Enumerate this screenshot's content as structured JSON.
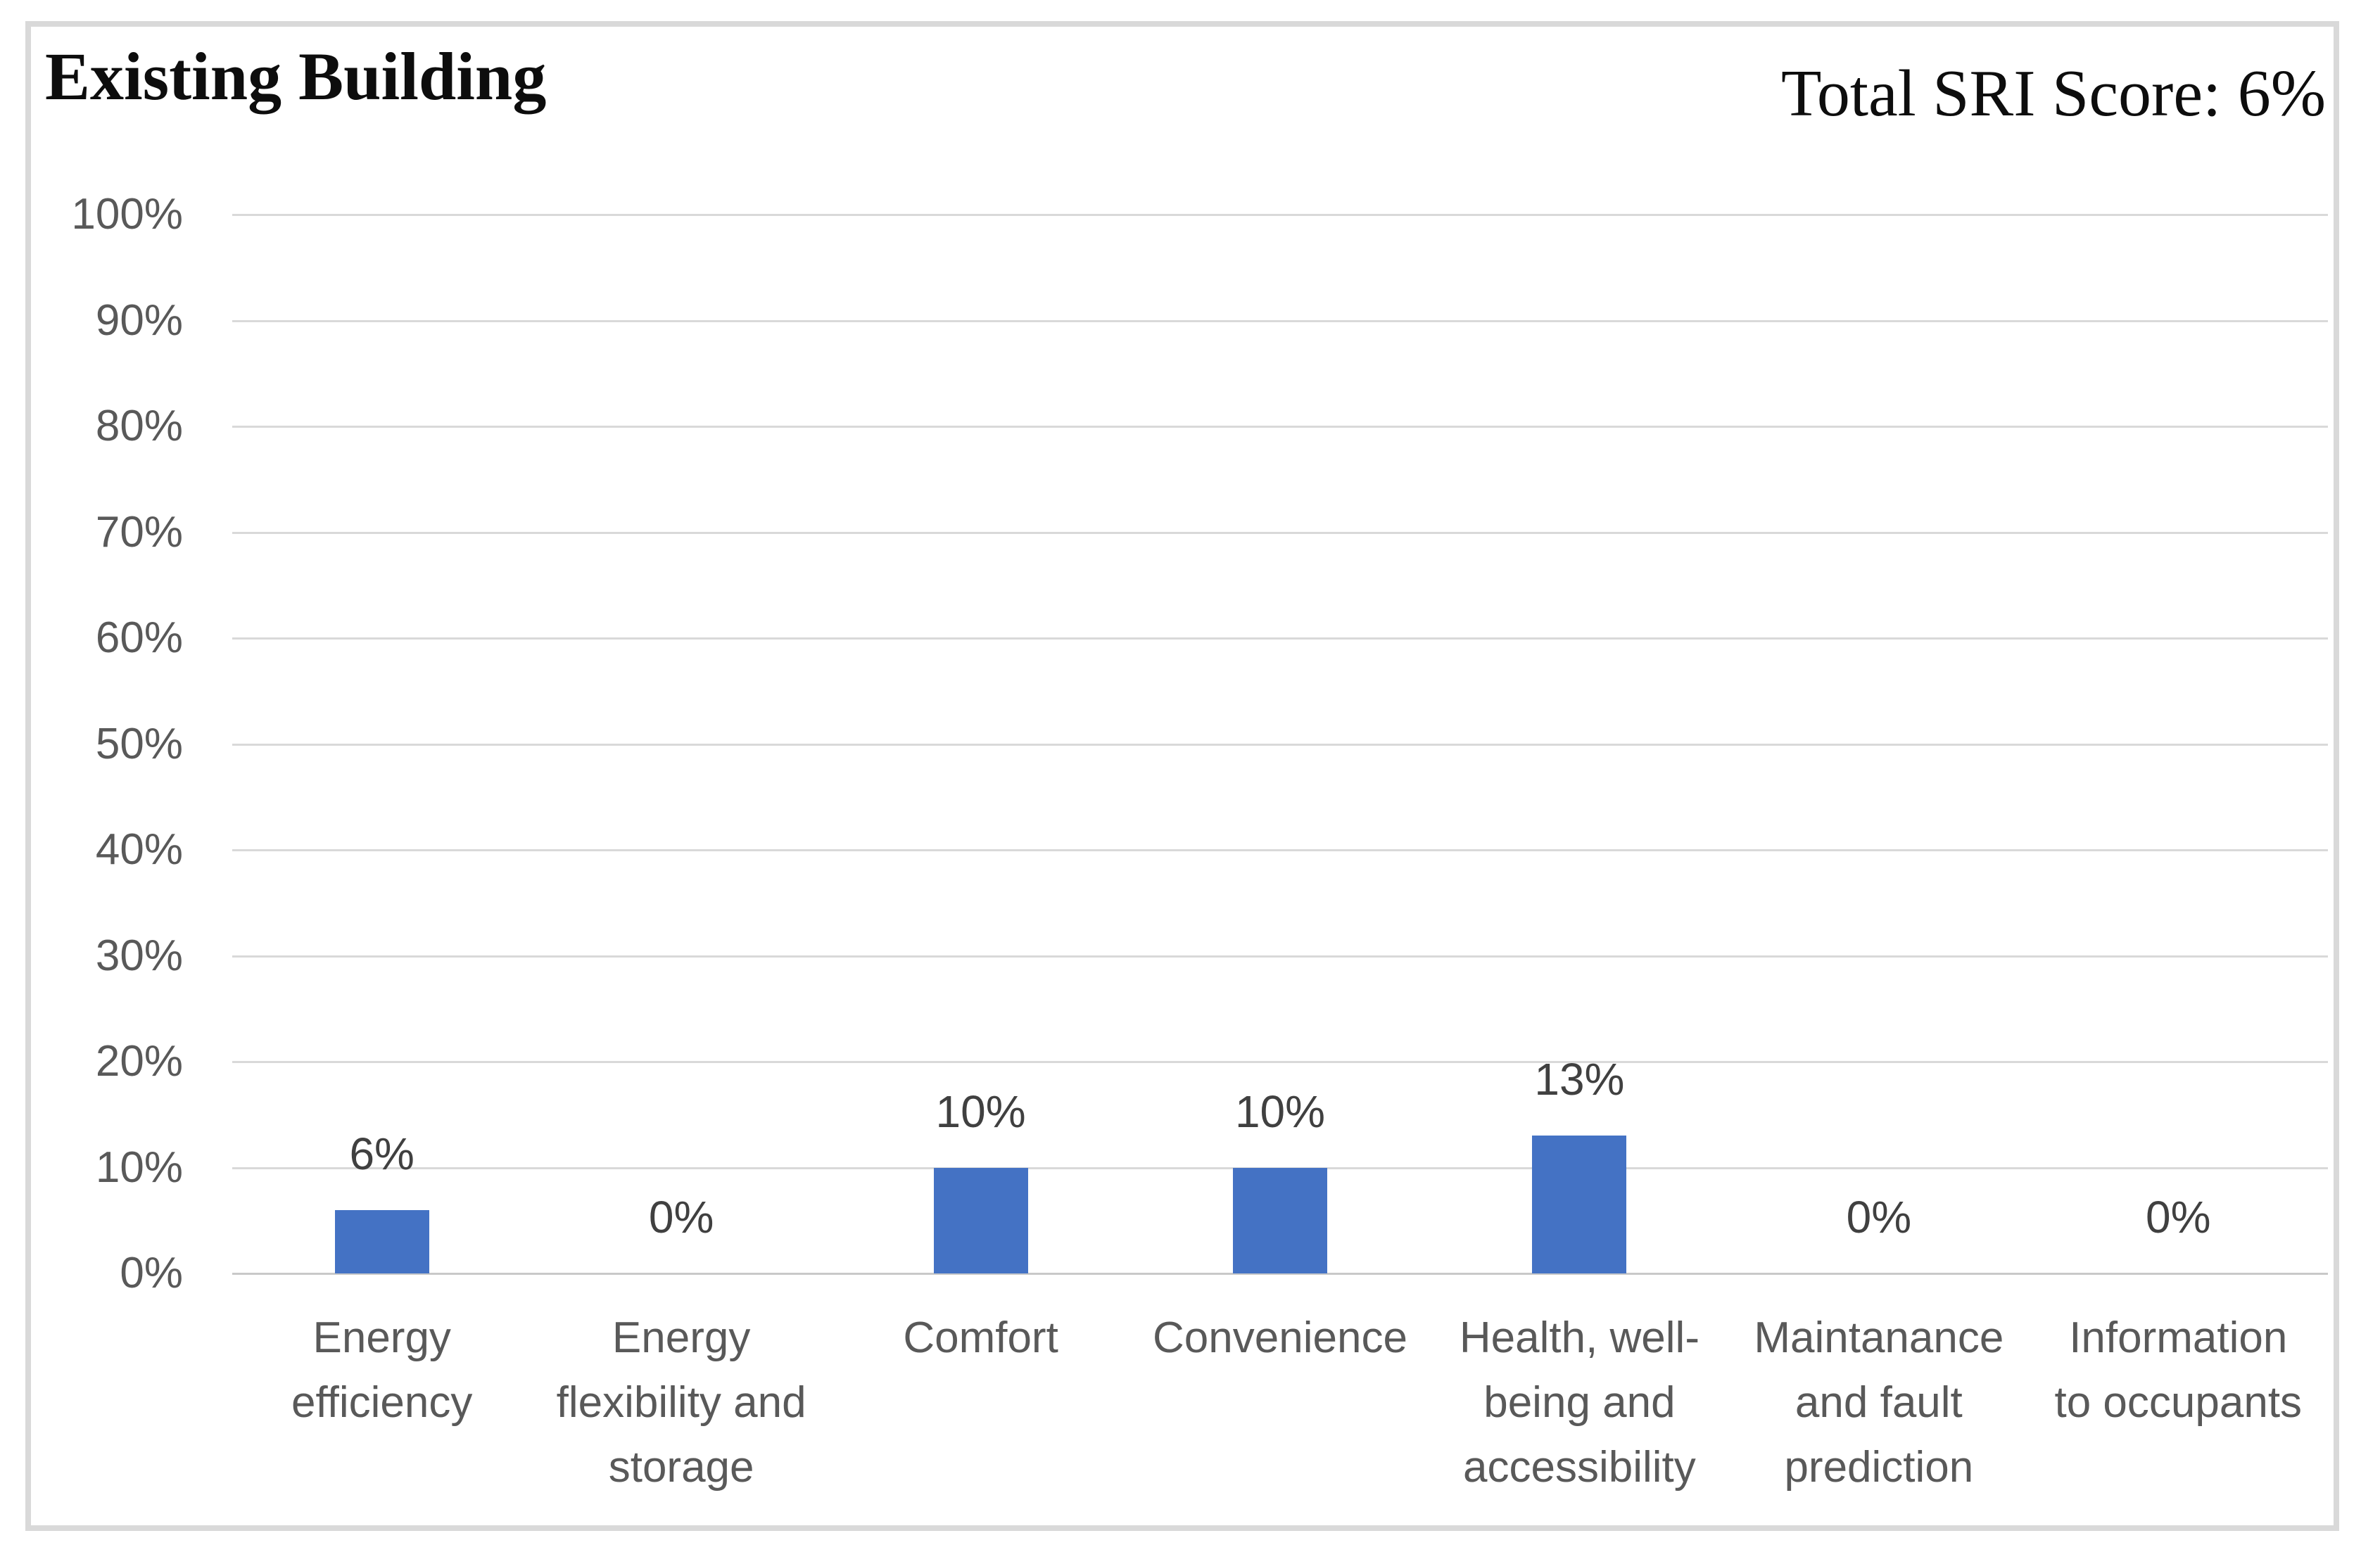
{
  "chart": {
    "title": "Existing Building",
    "score_label": "Total SRI Score: 6%"
  },
  "colors": {
    "bar": "#4472c4",
    "gridline": "#d9d9d9",
    "axis_text": "#595959",
    "data_label_text": "#404040",
    "title_text": "#0d0d0d",
    "frame_border": "#d9d9d9",
    "background": "#ffffff"
  },
  "chart_data": {
    "type": "bar",
    "title": "Existing Building",
    "annotation": "Total SRI Score: 6%",
    "categories": [
      "Energy efficiency",
      "Energy flexibility and storage",
      "Comfort",
      "Convenience",
      "Health, well-being and accessibility",
      "Maintanance and fault prediction",
      "Information to occupants"
    ],
    "category_lines": [
      [
        "Energy",
        "efficiency"
      ],
      [
        "Energy",
        "flexibility and",
        "storage"
      ],
      [
        "Comfort"
      ],
      [
        "Convenience"
      ],
      [
        "Health, well-",
        "being and",
        "accessibility"
      ],
      [
        "Maintanance",
        "and fault",
        "prediction"
      ],
      [
        "Information",
        "to occupants"
      ]
    ],
    "values": [
      6,
      0,
      10,
      10,
      13,
      0,
      0
    ],
    "data_labels": [
      "6%",
      "0%",
      "10%",
      "10%",
      "13%",
      "0%",
      "0%"
    ],
    "y_ticks": [
      "100%",
      "90%",
      "80%",
      "70%",
      "60%",
      "50%",
      "40%",
      "30%",
      "20%",
      "10%",
      "0%"
    ],
    "y_tick_values": [
      100,
      90,
      80,
      70,
      60,
      50,
      40,
      30,
      20,
      10,
      0
    ],
    "ylim": [
      0,
      100
    ],
    "grid": true,
    "legend": "none",
    "xlabel": "",
    "ylabel": ""
  }
}
